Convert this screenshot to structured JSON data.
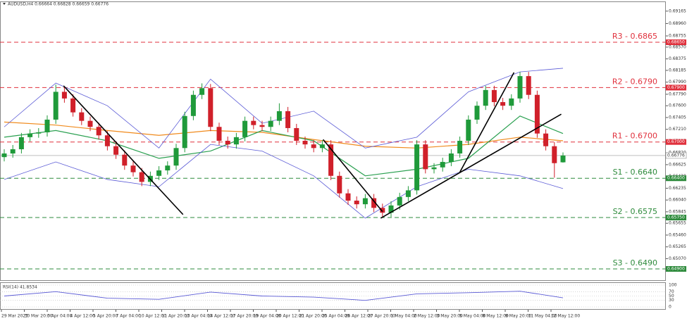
{
  "chart_data": {
    "type": "candlestick",
    "title": "AUDUSD,H4  0.66664 0.66828 0.66659 0.66776",
    "x_labels": [
      "29 Mar 2023",
      "30 Mar 20:00",
      "3 Apr 04:00",
      "4 Apr 12:00",
      "5 Apr 20:00",
      "7 Apr 04:00",
      "10 Apr 12:00",
      "11 Apr 20:00",
      "13 Apr 04:00",
      "14 Apr 12:00",
      "17 Apr 20:00",
      "19 Apr 04:00",
      "20 Apr 12:00",
      "21 Apr 20:00",
      "25 Apr 04:00",
      "26 Apr 12:00",
      "27 Apr 20:00",
      "1 May 04:00",
      "2 May 12:00",
      "3 May 20:00",
      "5 May 04:00",
      "8 May 12:00",
      "9 May 20:00",
      "11 May 04:00",
      "12 May 12:00"
    ],
    "open": [
      0.6675,
      0.6681,
      0.6688,
      0.6708,
      0.6714,
      0.6716,
      0.6737,
      0.6783,
      0.6772,
      0.6749,
      0.6735,
      0.6725,
      0.6711,
      0.6693,
      0.6679,
      0.6661,
      0.665,
      0.6634,
      0.6644,
      0.6653,
      0.6661,
      0.669,
      0.6743,
      0.6778,
      0.6789,
      0.6725,
      0.6702,
      0.6696,
      0.6708,
      0.6735,
      0.6728,
      0.6725,
      0.6735,
      0.6751,
      0.6723,
      0.6702,
      0.6696,
      0.669,
      0.6696,
      0.6644,
      0.6615,
      0.6603,
      0.6597,
      0.6607,
      0.6591,
      0.6583,
      0.6595,
      0.6609,
      0.662,
      0.6696,
      0.6655,
      0.6658,
      0.6667,
      0.6681,
      0.6702,
      0.6737,
      0.676,
      0.6786,
      0.6766,
      0.676,
      0.6772,
      0.6809,
      0.6778,
      0.6714,
      0.6693,
      0.66664
    ],
    "high": [
      0.6688,
      0.6695,
      0.6715,
      0.6721,
      0.6723,
      0.6744,
      0.6795,
      0.679,
      0.6779,
      0.6756,
      0.6742,
      0.6732,
      0.6718,
      0.67,
      0.6686,
      0.6668,
      0.6657,
      0.6651,
      0.666,
      0.6668,
      0.6697,
      0.675,
      0.6785,
      0.6797,
      0.6796,
      0.6732,
      0.6709,
      0.6715,
      0.6742,
      0.6742,
      0.6735,
      0.6742,
      0.6764,
      0.6758,
      0.673,
      0.6709,
      0.6703,
      0.6703,
      0.6703,
      0.6651,
      0.6622,
      0.661,
      0.6614,
      0.6614,
      0.6598,
      0.6602,
      0.6616,
      0.6627,
      0.6703,
      0.6703,
      0.6665,
      0.6674,
      0.6688,
      0.6709,
      0.6744,
      0.6767,
      0.6793,
      0.6793,
      0.6773,
      0.6779,
      0.6816,
      0.6816,
      0.6785,
      0.6721,
      0.67,
      0.66828
    ],
    "low": [
      0.6668,
      0.6674,
      0.6681,
      0.6701,
      0.6707,
      0.6709,
      0.673,
      0.6765,
      0.6742,
      0.6728,
      0.6718,
      0.6704,
      0.6686,
      0.6672,
      0.6654,
      0.6643,
      0.6627,
      0.6627,
      0.6637,
      0.6646,
      0.6654,
      0.6683,
      0.6736,
      0.6771,
      0.6718,
      0.6695,
      0.6689,
      0.6689,
      0.6701,
      0.6721,
      0.6718,
      0.6718,
      0.6728,
      0.6716,
      0.6695,
      0.6689,
      0.6683,
      0.6683,
      0.6637,
      0.6608,
      0.6596,
      0.659,
      0.659,
      0.6584,
      0.6576,
      0.6576,
      0.6588,
      0.6602,
      0.6613,
      0.6648,
      0.6648,
      0.6651,
      0.666,
      0.6674,
      0.6695,
      0.673,
      0.6753,
      0.6759,
      0.6753,
      0.6753,
      0.6765,
      0.6771,
      0.6707,
      0.6686,
      0.6641,
      0.66659
    ],
    "close": [
      0.6681,
      0.6688,
      0.6708,
      0.6714,
      0.6716,
      0.6737,
      0.6783,
      0.6772,
      0.6749,
      0.6735,
      0.6725,
      0.6711,
      0.6693,
      0.6679,
      0.6661,
      0.665,
      0.6634,
      0.6644,
      0.6653,
      0.6661,
      0.669,
      0.6743,
      0.6778,
      0.6789,
      0.6725,
      0.6702,
      0.6696,
      0.6708,
      0.6735,
      0.6728,
      0.6725,
      0.6735,
      0.6751,
      0.6723,
      0.6702,
      0.6696,
      0.669,
      0.6696,
      0.6644,
      0.6615,
      0.6603,
      0.6597,
      0.6607,
      0.6591,
      0.6583,
      0.6595,
      0.6609,
      0.662,
      0.6696,
      0.6655,
      0.6658,
      0.6667,
      0.6681,
      0.6702,
      0.6737,
      0.676,
      0.6786,
      0.6766,
      0.676,
      0.6772,
      0.6809,
      0.6778,
      0.6714,
      0.6693,
      0.6665,
      0.66776
    ],
    "up_color": "#1f9a3a",
    "down_color": "#d0202a",
    "ylim": [
      0.64714,
      0.69256
    ],
    "yticks": [
      0.69165,
      {
        "value": 0.6896,
        "label": "0.68960"
      },
      0.68755,
      {
        "value": 0.6857,
        "label": "0.68570"
      },
      0.68375,
      0.68185,
      {
        "value": 0.6799,
        "label": "0.67990"
      },
      {
        "value": 0.6779,
        "label": "0.67790"
      },
      {
        "value": 0.676,
        "label": "0.67600"
      },
      0.67405,
      {
        "value": 0.6721,
        "label": "0.67210"
      },
      0.67015,
      {
        "value": 0.6682,
        "label": "0.66820"
      },
      0.66625,
      {
        "value": 0.6643,
        "label": "0.66430"
      },
      0.66235,
      {
        "value": 0.6604,
        "label": "0.66040"
      },
      0.65845,
      0.65655,
      {
        "value": 0.6546,
        "label": "0.65460"
      },
      0.65265,
      {
        "value": 0.6507,
        "label": "0.65070"
      },
      {
        "value": 0.6488,
        "label": "0.64880"
      }
    ],
    "overlay_x": [
      0,
      6,
      12,
      18,
      24,
      30,
      36,
      42,
      48,
      54,
      60,
      65
    ],
    "overlays": [
      {
        "color": "#f08a1c",
        "values": [
          0.6733,
          0.6728,
          0.6719,
          0.6711,
          0.6719,
          0.6716,
          0.6704,
          0.6693,
          0.669,
          0.6696,
          0.6708,
          0.6702
        ]
      },
      {
        "color": "#2aa050",
        "values": [
          0.6708,
          0.6719,
          0.6702,
          0.6673,
          0.6685,
          0.6719,
          0.6702,
          0.6644,
          0.6655,
          0.6673,
          0.6743,
          0.6714
        ]
      },
      {
        "color": "#5a5ad6",
        "values": [
          0.6725,
          0.67975,
          0.676,
          0.669,
          0.6804,
          0.6731,
          0.6751,
          0.669,
          0.6708,
          0.6783,
          0.6816,
          0.6822
        ]
      },
      {
        "color": "#5a5ad6",
        "values": [
          0.6638,
          0.6667,
          0.6638,
          0.6626,
          0.6696,
          0.6685,
          0.6644,
          0.6574,
          0.6626,
          0.6655,
          0.6644,
          0.6623
        ]
      }
    ],
    "trendlines": [
      {
        "x": [
          6.9,
          20.8
        ],
        "y": [
          0.6793,
          0.658
        ]
      },
      {
        "x": [
          37.1,
          44
        ],
        "y": [
          0.6704,
          0.6585
        ]
      },
      {
        "x": [
          43.8,
          64.8
        ],
        "y": [
          0.6574,
          0.6746
        ]
      },
      {
        "x": [
          53,
          59.3
        ],
        "y": [
          0.665,
          0.6815
        ]
      }
    ],
    "levels": [
      {
        "label": "R3 - 0.6865",
        "value": 0.6865,
        "tag": "0.68650",
        "color": "#e0303c"
      },
      {
        "label": "R2 - 0.6790",
        "value": 0.679,
        "tag": "0.67900",
        "color": "#e0303c"
      },
      {
        "label": "R1 - 0.6700",
        "value": 0.67,
        "tag": "0.67000",
        "color": "#e0303c"
      },
      {
        "label": "S1 - 0.6640",
        "value": 0.664,
        "tag": "0.66400",
        "color": "#2e8b3c"
      },
      {
        "label": "S2 - 0.6575",
        "value": 0.6575,
        "tag": "0.65750",
        "color": "#2e8b3c"
      },
      {
        "label": "S3 - 0.6490",
        "value": 0.649,
        "tag": "0.64900",
        "color": "#2e8b3c"
      }
    ],
    "current": {
      "value": 0.66776,
      "tag": "0.66776"
    },
    "rsi": {
      "label": "RSI(14) 41.8534",
      "color": "#5a5ad6",
      "values": [
        50,
        70,
        40,
        35,
        68,
        50,
        45,
        30,
        60,
        65,
        72,
        41.8534
      ],
      "ylim": [
        0,
        100
      ],
      "yticks": [
        100,
        70,
        50,
        30,
        0
      ]
    }
  }
}
